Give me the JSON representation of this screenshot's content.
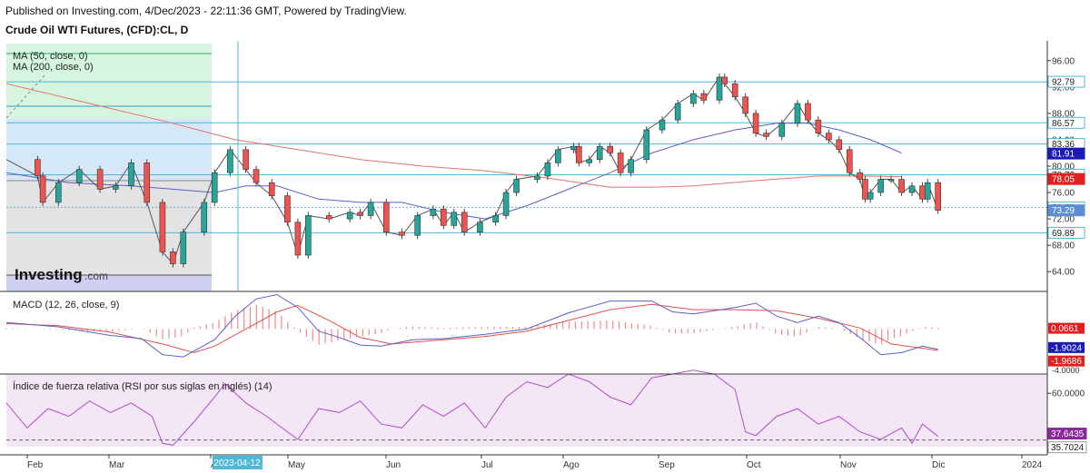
{
  "header": {
    "published": "Published on Investing.com, 4/Dec/2023 - 22:11:36 GMT, Powered by TradingView.",
    "instrument": "Crude Oil WTI Futures, (CFD):CL, D"
  },
  "logo": {
    "brand": "Investing",
    "suffix": ".com"
  },
  "colors": {
    "up": "#26a69a",
    "down": "#ef5350",
    "ma50": "#5b5fc7",
    "ma200": "#e5736b",
    "level_line": "#4fb8d6",
    "green_zone": "#d6f5e0",
    "blue_zone": "#d4e8f7",
    "gray_zone": "#e3e3e3",
    "purple_zone": "#cfd0f2",
    "rsi_bg": "#f3e6f5",
    "rsi_line": "#b24bd1"
  },
  "chart_data": [
    {
      "type": "candlestick",
      "title": "Crude Oil WTI Futures, (CFD):CL, D",
      "legend": [
        "MA (50, close, 0)",
        "MA (200, close, 0)"
      ],
      "ylim": [
        61,
        99
      ],
      "y_ticks": [
        64.0,
        68.0,
        72.0,
        76.0,
        80.0,
        84.0,
        88.0,
        92.0,
        96.0
      ],
      "x_ticks": [
        "Feb",
        "Mar",
        "Abr",
        "May",
        "Jun",
        "Jul",
        "Ago",
        "Sep",
        "Oct",
        "Nov",
        "Dic",
        "2024"
      ],
      "crosshair_label": "2023-04-12",
      "horizontal_levels": [
        92.79,
        86.57,
        83.36,
        78.7,
        73.75,
        69.89
      ],
      "price_tags": [
        {
          "label": "92.79",
          "value": 92.79,
          "kind": "level"
        },
        {
          "label": "86.57",
          "value": 86.57,
          "kind": "level"
        },
        {
          "label": "83.36",
          "value": 83.36,
          "kind": "level"
        },
        {
          "label": "81.91",
          "value": 81.91,
          "kind": "ma50"
        },
        {
          "label": "78.70",
          "value": 78.7,
          "kind": "level"
        },
        {
          "label": "78.05",
          "value": 78.05,
          "kind": "ma200"
        },
        {
          "label": "73.75",
          "value": 73.75,
          "kind": "level"
        },
        {
          "label": "73.29",
          "value": 73.29,
          "kind": "last"
        },
        {
          "label": "69.89",
          "value": 69.89,
          "kind": "level"
        }
      ],
      "price_path": [
        [
          0,
          81.0
        ],
        [
          0.03,
          78.5
        ],
        [
          0.035,
          74.5
        ],
        [
          0.05,
          77.5
        ],
        [
          0.07,
          79.5
        ],
        [
          0.09,
          76.5
        ],
        [
          0.105,
          77.0
        ],
        [
          0.12,
          80.5
        ],
        [
          0.135,
          74.5
        ],
        [
          0.15,
          67.0
        ],
        [
          0.16,
          65.2
        ],
        [
          0.17,
          70.0
        ],
        [
          0.19,
          74.5
        ],
        [
          0.2,
          79.0
        ],
        [
          0.215,
          82.5
        ],
        [
          0.23,
          79.5
        ],
        [
          0.24,
          77.5
        ],
        [
          0.255,
          75.5
        ],
        [
          0.27,
          71.5
        ],
        [
          0.28,
          66.5
        ],
        [
          0.29,
          72.5
        ],
        [
          0.31,
          72.0
        ],
        [
          0.33,
          73.0
        ],
        [
          0.34,
          72.5
        ],
        [
          0.35,
          74.5
        ],
        [
          0.365,
          70.0
        ],
        [
          0.38,
          69.5
        ],
        [
          0.395,
          72.5
        ],
        [
          0.41,
          73.5
        ],
        [
          0.42,
          71.0
        ],
        [
          0.43,
          73.0
        ],
        [
          0.44,
          70.0
        ],
        [
          0.455,
          71.5
        ],
        [
          0.47,
          72.5
        ],
        [
          0.48,
          76.0
        ],
        [
          0.49,
          78.0
        ],
        [
          0.51,
          78.5
        ],
        [
          0.52,
          80.5
        ],
        [
          0.53,
          82.5
        ],
        [
          0.545,
          83.0
        ],
        [
          0.55,
          80.5
        ],
        [
          0.56,
          81.0
        ],
        [
          0.57,
          83.0
        ],
        [
          0.58,
          82.0
        ],
        [
          0.59,
          79.0
        ],
        [
          0.6,
          81.0
        ],
        [
          0.615,
          85.5
        ],
        [
          0.63,
          87.0
        ],
        [
          0.645,
          89.5
        ],
        [
          0.66,
          91.0
        ],
        [
          0.67,
          90.0
        ],
        [
          0.685,
          93.5
        ],
        [
          0.69,
          92.5
        ],
        [
          0.7,
          90.5
        ],
        [
          0.71,
          88.0
        ],
        [
          0.72,
          85.0
        ],
        [
          0.73,
          84.5
        ],
        [
          0.745,
          86.5
        ],
        [
          0.76,
          89.5
        ],
        [
          0.77,
          87.0
        ],
        [
          0.78,
          85.0
        ],
        [
          0.79,
          84.0
        ],
        [
          0.8,
          82.5
        ],
        [
          0.81,
          79.0
        ],
        [
          0.82,
          78.0
        ],
        [
          0.825,
          75.0
        ],
        [
          0.83,
          76.0
        ],
        [
          0.84,
          78.0
        ],
        [
          0.85,
          78.0
        ],
        [
          0.86,
          76.0
        ],
        [
          0.87,
          77.0
        ],
        [
          0.88,
          75.0
        ],
        [
          0.885,
          77.5
        ],
        [
          0.895,
          73.3
        ]
      ],
      "ma50_path": [
        [
          0,
          79.0
        ],
        [
          0.06,
          77.5
        ],
        [
          0.12,
          77.0
        ],
        [
          0.16,
          76.5
        ],
        [
          0.2,
          76.0
        ],
        [
          0.23,
          77.0
        ],
        [
          0.26,
          77.0
        ],
        [
          0.3,
          75.0
        ],
        [
          0.34,
          74.5
        ],
        [
          0.38,
          74.5
        ],
        [
          0.42,
          73.0
        ],
        [
          0.46,
          72.0
        ],
        [
          0.5,
          74.0
        ],
        [
          0.54,
          76.5
        ],
        [
          0.58,
          79.0
        ],
        [
          0.62,
          82.0
        ],
        [
          0.66,
          84.0
        ],
        [
          0.7,
          85.5
        ],
        [
          0.74,
          86.5
        ],
        [
          0.77,
          86.5
        ],
        [
          0.8,
          85.5
        ],
        [
          0.83,
          84.0
        ],
        [
          0.86,
          82.0
        ]
      ],
      "ma200_path": [
        [
          0,
          92.5
        ],
        [
          0.08,
          89.5
        ],
        [
          0.16,
          86.5
        ],
        [
          0.22,
          84.0
        ],
        [
          0.28,
          82.5
        ],
        [
          0.34,
          81.0
        ],
        [
          0.4,
          80.0
        ],
        [
          0.46,
          79.3
        ],
        [
          0.52,
          78.2
        ],
        [
          0.58,
          76.8
        ],
        [
          0.62,
          76.8
        ],
        [
          0.66,
          77.0
        ],
        [
          0.72,
          77.8
        ],
        [
          0.78,
          78.5
        ],
        [
          0.82,
          78.5
        ],
        [
          0.86,
          78.4
        ]
      ]
    },
    {
      "type": "line",
      "title": "MACD (12, 26, close, 9)",
      "ylim": [
        -4.2,
        3.5
      ],
      "value_tags": [
        {
          "label": "0.0661",
          "value": 0.0661,
          "kind": "hist"
        },
        {
          "label": "-1.9024",
          "value": -1.9024,
          "kind": "macd"
        },
        {
          "label": "-1.9686",
          "value": -1.9686,
          "kind": "signal"
        }
      ],
      "partial_tick": "-4.0000",
      "macd_path": [
        [
          0,
          0.6
        ],
        [
          0.05,
          0.2
        ],
        [
          0.1,
          -0.6
        ],
        [
          0.13,
          -0.9
        ],
        [
          0.15,
          -2.4
        ],
        [
          0.17,
          -2.6
        ],
        [
          0.2,
          -1.0
        ],
        [
          0.22,
          1.2
        ],
        [
          0.24,
          2.8
        ],
        [
          0.26,
          3.2
        ],
        [
          0.28,
          2.0
        ],
        [
          0.3,
          -0.2
        ],
        [
          0.32,
          -0.8
        ],
        [
          0.34,
          -1.5
        ],
        [
          0.36,
          -1.6
        ],
        [
          0.39,
          -1.0
        ],
        [
          0.42,
          -0.9
        ],
        [
          0.46,
          -0.5
        ],
        [
          0.5,
          0.0
        ],
        [
          0.54,
          1.5
        ],
        [
          0.58,
          2.6
        ],
        [
          0.62,
          2.6
        ],
        [
          0.64,
          1.6
        ],
        [
          0.66,
          1.4
        ],
        [
          0.7,
          2.0
        ],
        [
          0.72,
          2.4
        ],
        [
          0.74,
          1.2
        ],
        [
          0.76,
          0.6
        ],
        [
          0.78,
          1.2
        ],
        [
          0.8,
          0.6
        ],
        [
          0.82,
          -0.8
        ],
        [
          0.84,
          -2.4
        ],
        [
          0.86,
          -2.2
        ],
        [
          0.88,
          -1.6
        ],
        [
          0.895,
          -1.9
        ]
      ],
      "signal_path": [
        [
          0,
          0.5
        ],
        [
          0.05,
          0.3
        ],
        [
          0.1,
          -0.3
        ],
        [
          0.15,
          -1.4
        ],
        [
          0.18,
          -2.2
        ],
        [
          0.2,
          -1.6
        ],
        [
          0.23,
          0.0
        ],
        [
          0.26,
          1.6
        ],
        [
          0.28,
          2.2
        ],
        [
          0.31,
          0.8
        ],
        [
          0.34,
          -0.8
        ],
        [
          0.37,
          -1.4
        ],
        [
          0.42,
          -1.0
        ],
        [
          0.46,
          -0.7
        ],
        [
          0.5,
          -0.2
        ],
        [
          0.54,
          0.8
        ],
        [
          0.58,
          1.8
        ],
        [
          0.62,
          2.3
        ],
        [
          0.66,
          1.8
        ],
        [
          0.7,
          1.8
        ],
        [
          0.74,
          1.7
        ],
        [
          0.78,
          1.0
        ],
        [
          0.82,
          0.1
        ],
        [
          0.85,
          -1.4
        ],
        [
          0.88,
          -1.8
        ],
        [
          0.895,
          -2.0
        ]
      ]
    },
    {
      "type": "line",
      "title": "Índice de fuerza relativa (RSI por sus siglas en inglés) (14)",
      "ylim": [
        28,
        70
      ],
      "value_tags": [
        {
          "label": "60.0000",
          "value": 60.0,
          "kind": "tick"
        },
        {
          "label": "37.6435",
          "value": 37.6435,
          "kind": "rsi"
        },
        {
          "label": "35.7024",
          "value": 35.7024,
          "kind": "floor"
        }
      ],
      "rsi_path": [
        [
          0,
          55
        ],
        [
          0.02,
          42
        ],
        [
          0.04,
          52
        ],
        [
          0.06,
          48
        ],
        [
          0.08,
          56
        ],
        [
          0.1,
          50
        ],
        [
          0.12,
          55
        ],
        [
          0.14,
          48
        ],
        [
          0.15,
          34
        ],
        [
          0.16,
          33
        ],
        [
          0.18,
          45
        ],
        [
          0.2,
          58
        ],
        [
          0.21,
          65
        ],
        [
          0.23,
          55
        ],
        [
          0.25,
          48
        ],
        [
          0.27,
          40
        ],
        [
          0.28,
          36
        ],
        [
          0.3,
          52
        ],
        [
          0.32,
          50
        ],
        [
          0.34,
          56
        ],
        [
          0.36,
          44
        ],
        [
          0.38,
          42
        ],
        [
          0.4,
          54
        ],
        [
          0.42,
          48
        ],
        [
          0.44,
          55
        ],
        [
          0.46,
          42
        ],
        [
          0.48,
          58
        ],
        [
          0.5,
          66
        ],
        [
          0.52,
          63
        ],
        [
          0.54,
          70
        ],
        [
          0.56,
          66
        ],
        [
          0.58,
          58
        ],
        [
          0.6,
          54
        ],
        [
          0.62,
          68
        ],
        [
          0.64,
          70
        ],
        [
          0.66,
          72
        ],
        [
          0.68,
          70
        ],
        [
          0.7,
          62
        ],
        [
          0.71,
          40
        ],
        [
          0.72,
          38
        ],
        [
          0.74,
          48
        ],
        [
          0.76,
          52
        ],
        [
          0.78,
          44
        ],
        [
          0.8,
          48
        ],
        [
          0.82,
          40
        ],
        [
          0.84,
          36
        ],
        [
          0.86,
          42
        ],
        [
          0.87,
          34
        ],
        [
          0.88,
          44
        ],
        [
          0.895,
          37.6
        ]
      ]
    }
  ]
}
